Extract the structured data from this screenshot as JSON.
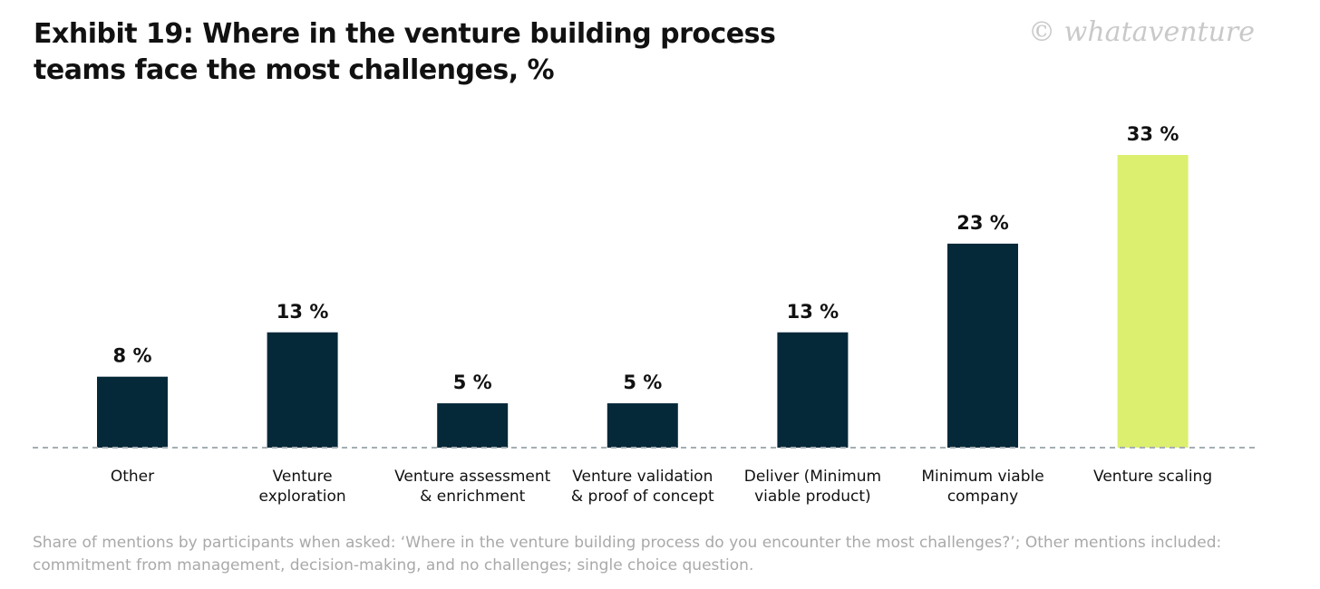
{
  "title": "Exhibit 19: Where in the venture building process teams face the most challenges, %",
  "watermark": "© whataventure",
  "footnote": "Share of mentions by participants when asked: ‘Where in the venture building process do you encounter the most challenges?’; Other mentions included: commitment from management, decision-making, and no challenges; single choice question.",
  "colors": {
    "bar": "#06293a",
    "highlight": "#dcef6f",
    "baseline": "#a5aeb3"
  },
  "chart_data": {
    "type": "bar",
    "categories": [
      [
        "Other"
      ],
      [
        "Venture",
        "exploration"
      ],
      [
        "Venture assessment",
        "& enrichment"
      ],
      [
        "Venture validation",
        "& proof of concept"
      ],
      [
        "Deliver (Minimum",
        "viable product)"
      ],
      [
        "Minimum viable",
        "company"
      ],
      [
        "Venture scaling"
      ]
    ],
    "values": [
      8,
      13,
      5,
      5,
      13,
      23,
      33
    ],
    "value_labels": [
      "8 %",
      "13 %",
      "5 %",
      "5 %",
      "13 %",
      "23 %",
      "33 %"
    ],
    "highlight_index": 6,
    "ylim": [
      0,
      33
    ],
    "grid": false,
    "baseline": "dashed"
  }
}
